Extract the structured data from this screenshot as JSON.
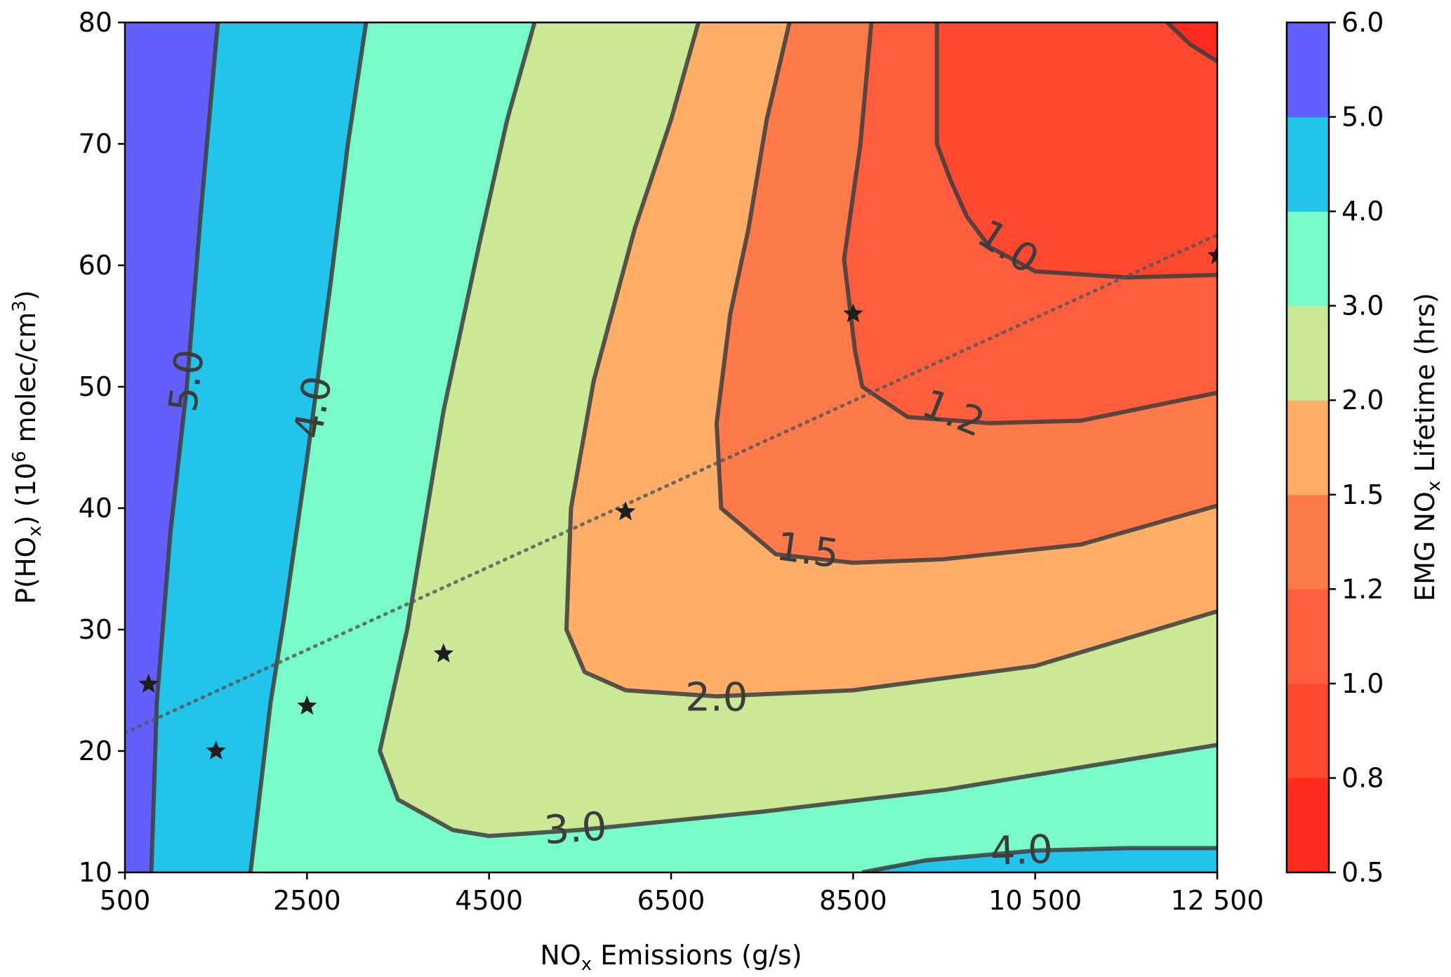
{
  "chart_data": {
    "type": "contourf",
    "x_axis": {
      "label_parts": [
        "NO",
        "x",
        " Emissions (g/s)"
      ],
      "range": [
        500,
        12500
      ],
      "ticks": [
        500,
        2500,
        4500,
        6500,
        8500,
        10500,
        12500
      ],
      "tick_labels": [
        "500",
        "2500",
        "4500",
        "6500",
        "8500",
        "10 500",
        "12 500"
      ]
    },
    "y_axis": {
      "label_parts": [
        "P(HO",
        "x",
        ") (10",
        "6",
        " molec/cm",
        "3",
        ")"
      ],
      "range": [
        10,
        80
      ],
      "ticks": [
        10,
        20,
        30,
        40,
        50,
        60,
        70,
        80
      ],
      "tick_labels": [
        "10",
        "20",
        "30",
        "40",
        "50",
        "60",
        "70",
        "80"
      ]
    },
    "colorbar": {
      "label_parts": [
        "EMG NO",
        "x",
        " Lifetime (hrs)"
      ],
      "levels": [
        0.5,
        0.8,
        1.0,
        1.2,
        1.5,
        2.0,
        3.0,
        4.0,
        5.0,
        6.0
      ],
      "tick_labels": [
        "0.5",
        "0.8",
        "1.0",
        "1.2",
        "1.5",
        "2.0",
        "3.0",
        "4.0",
        "5.0",
        "6.0"
      ],
      "colors": [
        "#ff2a1e",
        "#ff4830",
        "#ff5e3e",
        "#ff7a4b",
        "#ffae6a",
        "#cbe896",
        "#78fbc8",
        "#23c4ea",
        "#6260fd"
      ]
    },
    "fill_colors": {
      "lt_0_8": "#ff2a1e",
      "0_8_to_1_0": "#ff4830",
      "1_0_to_1_2": "#ff5e3e",
      "1_2_to_1_5": "#ff7a4b",
      "1_5_to_2_0": "#ffae6a",
      "2_0_to_3_0": "#cbe896",
      "3_0_to_4_0": "#78fbc8",
      "4_0_to_5_0": "#23c4ea",
      "gt_5_0": "#6260fd"
    },
    "contours": [
      {
        "level_label": "1.0",
        "points": [
          [
            9420,
            80
          ],
          [
            9420,
            70
          ],
          [
            9570,
            67
          ],
          [
            9750,
            64
          ],
          [
            10000,
            61.5
          ],
          [
            10500,
            59.5
          ],
          [
            11500,
            59
          ],
          [
            12500,
            59.2
          ]
        ]
      },
      {
        "level_label": "1.2",
        "points": [
          [
            8700,
            80
          ],
          [
            8580,
            70
          ],
          [
            8400,
            60.5
          ],
          [
            8520,
            53
          ],
          [
            8600,
            50
          ],
          [
            9100,
            47.5
          ],
          [
            10000,
            47
          ],
          [
            11000,
            47.2
          ],
          [
            12500,
            49.5
          ]
        ]
      },
      {
        "level_label": "1.5",
        "points": [
          [
            7800,
            80
          ],
          [
            7550,
            72
          ],
          [
            7350,
            63
          ],
          [
            7150,
            56
          ],
          [
            7000,
            47
          ],
          [
            7050,
            40
          ],
          [
            7650,
            36.2
          ],
          [
            8500,
            35.5
          ],
          [
            9500,
            35.8
          ],
          [
            11000,
            37
          ],
          [
            12500,
            40.2
          ]
        ]
      },
      {
        "level_label": "2.0",
        "points": [
          [
            6800,
            80
          ],
          [
            6500,
            72
          ],
          [
            6100,
            63
          ],
          [
            5650,
            50.5
          ],
          [
            5400,
            40
          ],
          [
            5350,
            30
          ],
          [
            5550,
            26.5
          ],
          [
            6000,
            25
          ],
          [
            7000,
            24.5
          ],
          [
            8500,
            25
          ],
          [
            10500,
            27
          ],
          [
            12500,
            31.5
          ]
        ]
      },
      {
        "level_label": "3.0",
        "points": [
          [
            5000,
            80
          ],
          [
            4700,
            72
          ],
          [
            4400,
            62
          ],
          [
            4000,
            48
          ],
          [
            3600,
            30
          ],
          [
            3300,
            20
          ],
          [
            3500,
            16
          ],
          [
            4100,
            13.5
          ],
          [
            4500,
            13
          ],
          [
            5500,
            13.5
          ],
          [
            7500,
            15
          ],
          [
            9500,
            16.8
          ],
          [
            12500,
            20.5
          ]
        ]
      },
      {
        "level_label": "4.0",
        "points": [
          [
            3150,
            80
          ],
          [
            2950,
            70
          ],
          [
            2750,
            58
          ],
          [
            2500,
            44
          ],
          [
            2250,
            31
          ],
          [
            2100,
            24
          ],
          [
            1880,
            10
          ]
        ]
      },
      {
        "level_label": "4.0",
        "points": [
          [
            8600,
            10
          ],
          [
            9300,
            11
          ],
          [
            10500,
            11.8
          ],
          [
            11500,
            12
          ],
          [
            12500,
            12
          ]
        ]
      },
      {
        "level_label": "5.0",
        "points": [
          [
            1520,
            80
          ],
          [
            1330,
            64
          ],
          [
            1180,
            50
          ],
          [
            1000,
            38
          ],
          [
            850,
            24
          ],
          [
            790,
            10
          ]
        ]
      },
      {
        "level_label": "0.8",
        "points": [
          [
            11950,
            80
          ],
          [
            12200,
            78.2
          ],
          [
            12500,
            76.8
          ]
        ]
      }
    ],
    "contour_labels": [
      {
        "text": "1.0",
        "x": 10200,
        "y": 61.5,
        "angle": 33
      },
      {
        "text": "1.2",
        "x": 9600,
        "y": 47.8,
        "angle": 22
      },
      {
        "text": "1.5",
        "x": 8000,
        "y": 36.5,
        "angle": 8
      },
      {
        "text": "2.0",
        "x": 7000,
        "y": 24.4,
        "angle": 0
      },
      {
        "text": "3.0",
        "x": 5450,
        "y": 13.6,
        "angle": -4
      },
      {
        "text": "4.0",
        "x": 10350,
        "y": 11.8,
        "angle": -2
      },
      {
        "text": "4.0",
        "x": 2570,
        "y": 48.3,
        "angle": -80
      },
      {
        "text": "5.0",
        "x": 1180,
        "y": 50.5,
        "angle": -83
      }
    ],
    "stars": [
      {
        "x": 760,
        "y": 25.5
      },
      {
        "x": 1500,
        "y": 20
      },
      {
        "x": 2500,
        "y": 23.7
      },
      {
        "x": 4000,
        "y": 28
      },
      {
        "x": 6000,
        "y": 39.7
      },
      {
        "x": 8500,
        "y": 56
      },
      {
        "x": 12500,
        "y": 60.8
      }
    ],
    "fit_line": {
      "x": [
        500,
        12500
      ],
      "y": [
        21.5,
        62.5
      ],
      "style": "dotted"
    }
  }
}
